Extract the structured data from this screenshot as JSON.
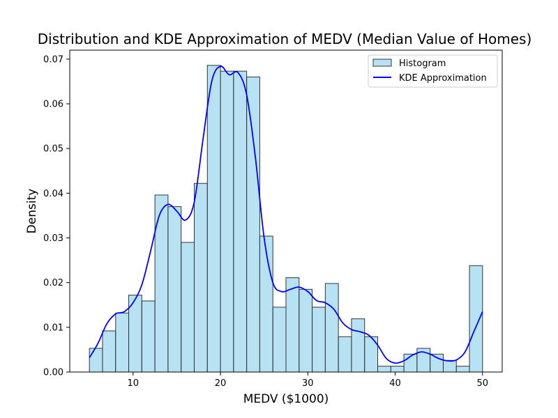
{
  "chart_data": {
    "type": "bar",
    "title": "Distribution and KDE Approximation of MEDV (Median Value of Homes)",
    "xlabel": "MEDV ($1000)",
    "ylabel": "Density",
    "xlim": [
      2.75,
      52.25
    ],
    "ylim": [
      0,
      0.072
    ],
    "xticks": [
      10,
      20,
      30,
      40,
      50
    ],
    "yticks": [
      0.0,
      0.01,
      0.02,
      0.03,
      0.04,
      0.05,
      0.06,
      0.07
    ],
    "ytick_labels": [
      "0.00",
      "0.01",
      "0.02",
      "0.03",
      "0.04",
      "0.05",
      "0.06",
      "0.07"
    ],
    "grid": false,
    "legend_position": "top-right",
    "histogram": {
      "name": "Histogram",
      "color": "#87CEEB",
      "edgecolor": "#333333",
      "bin_edges": [
        5.0,
        6.5,
        8.0,
        9.5,
        11.0,
        12.5,
        14.0,
        15.5,
        17.0,
        18.5,
        20.0,
        21.5,
        23.0,
        24.5,
        26.0,
        27.5,
        29.0,
        30.5,
        32.0,
        33.5,
        35.0,
        36.5,
        38.0,
        39.5,
        41.0,
        42.5,
        44.0,
        45.5,
        47.0,
        48.5,
        50.0
      ],
      "values": [
        0.0053,
        0.0092,
        0.0132,
        0.0172,
        0.0159,
        0.0396,
        0.037,
        0.029,
        0.0422,
        0.0686,
        0.0673,
        0.0673,
        0.066,
        0.0304,
        0.0145,
        0.0211,
        0.0185,
        0.0145,
        0.0198,
        0.0079,
        0.0119,
        0.0079,
        0.0013,
        0.0013,
        0.004,
        0.0053,
        0.004,
        0.0026,
        0.0013,
        0.0238
      ]
    },
    "kde": {
      "name": "KDE Approximation",
      "color": "#0000FF",
      "x": [
        5,
        6,
        7,
        8,
        9,
        10,
        11,
        12,
        13,
        14,
        15,
        16,
        17,
        18,
        19,
        20,
        21,
        22,
        23,
        24,
        25,
        26,
        27,
        28,
        29,
        30,
        31,
        32,
        33,
        34,
        35,
        36,
        37,
        38,
        39,
        40,
        41,
        42,
        43,
        44,
        45,
        46,
        47,
        48,
        49,
        50
      ],
      "y": [
        0.0032,
        0.0065,
        0.0108,
        0.013,
        0.0135,
        0.0155,
        0.0195,
        0.027,
        0.035,
        0.0375,
        0.036,
        0.034,
        0.038,
        0.052,
        0.065,
        0.0684,
        0.0665,
        0.067,
        0.062,
        0.048,
        0.03,
        0.02,
        0.018,
        0.0185,
        0.019,
        0.018,
        0.016,
        0.0155,
        0.014,
        0.011,
        0.0095,
        0.009,
        0.0082,
        0.006,
        0.003,
        0.002,
        0.0025,
        0.0038,
        0.0045,
        0.004,
        0.003,
        0.0025,
        0.0027,
        0.0045,
        0.009,
        0.0135
      ]
    }
  }
}
